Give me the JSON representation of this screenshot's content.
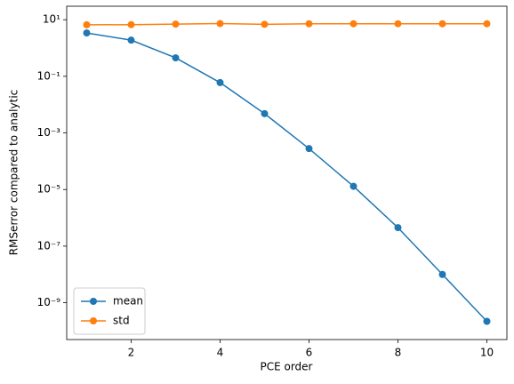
{
  "chart_data": {
    "type": "line",
    "x_label": "PCE order",
    "y_label": "RMSerror compared to analytic",
    "x": [
      1,
      2,
      3,
      4,
      5,
      6,
      7,
      8,
      9,
      10
    ],
    "series": [
      {
        "name": "mean",
        "color": "#1f77b4",
        "values": [
          3.4,
          1.9,
          0.45,
          0.06,
          0.0048,
          0.00028,
          1.3e-05,
          4.5e-07,
          1e-08,
          2.2e-10
        ]
      },
      {
        "name": "std",
        "color": "#ff7f0e",
        "values": [
          6.6,
          6.7,
          7.0,
          7.3,
          6.9,
          7.2,
          7.2,
          7.2,
          7.2,
          7.2
        ]
      }
    ],
    "xlim": [
      0.55,
      10.45
    ],
    "xticks": [
      2,
      4,
      6,
      8,
      10
    ],
    "ylim": [
      5e-11,
      30
    ],
    "log_y": true,
    "yticks": [
      {
        "value": 1e-09,
        "label": "10⁻⁹"
      },
      {
        "value": 1e-07,
        "label": "10⁻⁷"
      },
      {
        "value": 1e-05,
        "label": "10⁻⁵"
      },
      {
        "value": 0.001,
        "label": "10⁻³"
      },
      {
        "value": 0.1,
        "label": "10⁻¹"
      },
      {
        "value": 10,
        "label": "10¹"
      }
    ],
    "legend": "lower left"
  }
}
